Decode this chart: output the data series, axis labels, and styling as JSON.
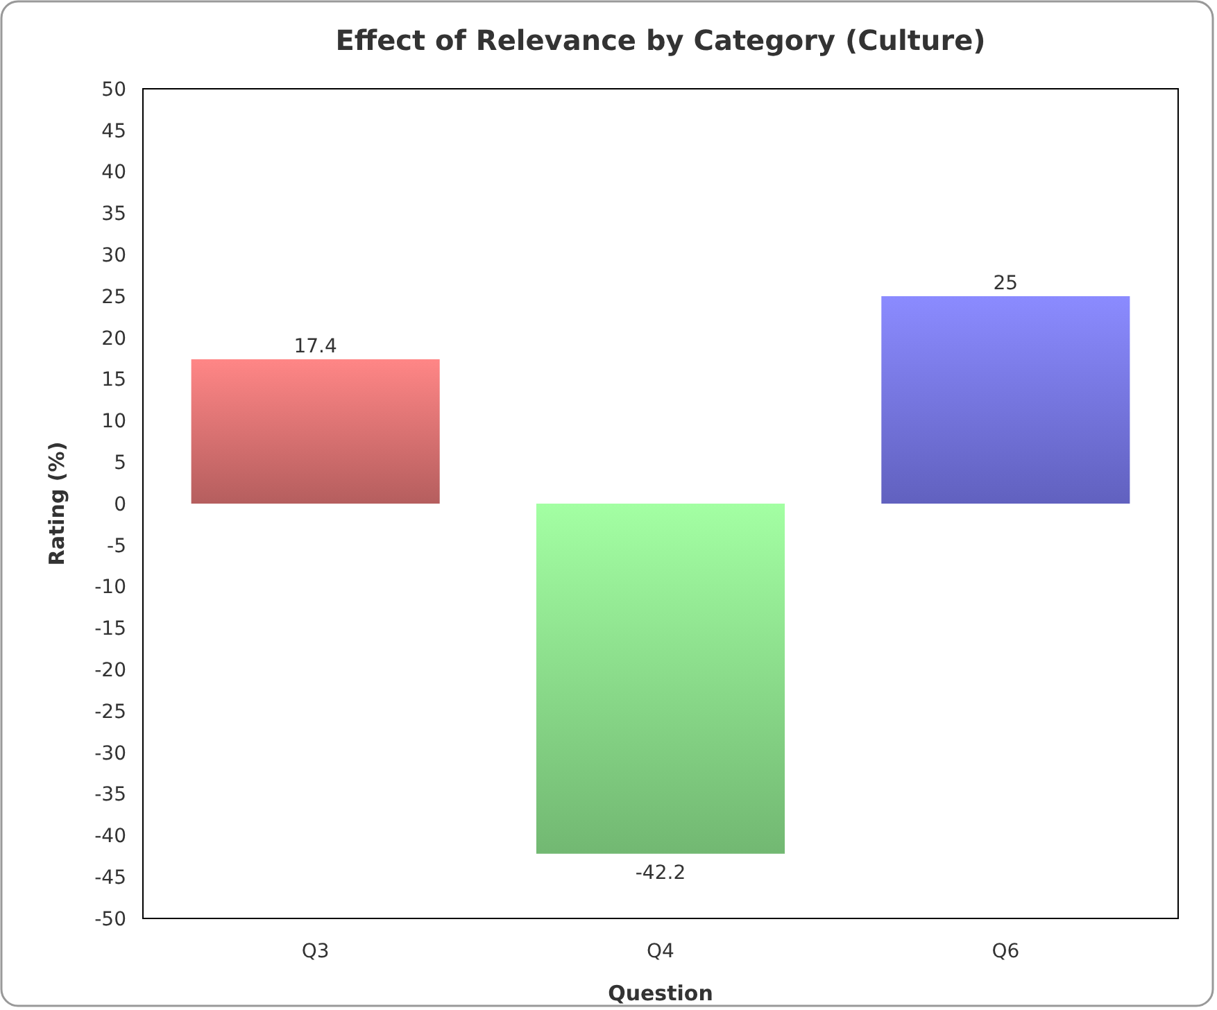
{
  "chart_data": {
    "type": "bar",
    "title": "Effect of Relevance by Category (Culture)",
    "xlabel": "Question",
    "ylabel": "Rating (%)",
    "categories": [
      "Q3",
      "Q4",
      "Q6"
    ],
    "values": [
      17.4,
      -42.2,
      25
    ],
    "colors": [
      "#d87070",
      "#88dc88",
      "#7474e4"
    ],
    "data_labels": true,
    "ylim": [
      -50,
      50
    ],
    "yticks": [
      -50,
      -45,
      -40,
      -35,
      -30,
      -25,
      -20,
      -15,
      -10,
      -5,
      0,
      5,
      10,
      15,
      20,
      25,
      30,
      35,
      40,
      45,
      50
    ],
    "grid": false
  }
}
